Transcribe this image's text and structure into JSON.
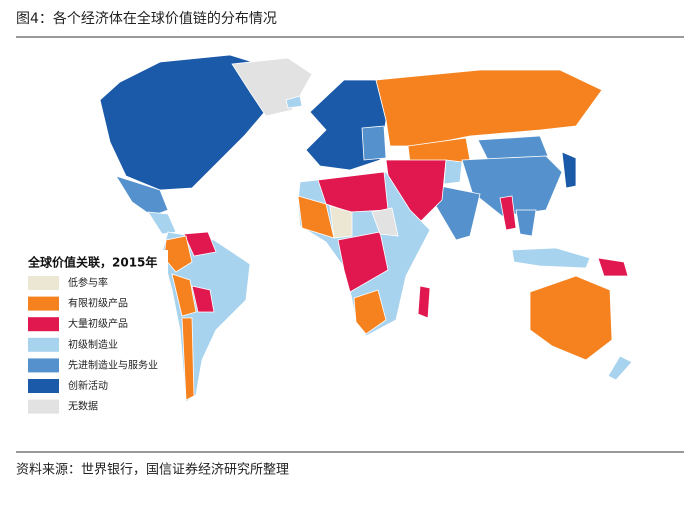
{
  "header": {
    "title": "图4：各个经济体在全球价值链的分布情况"
  },
  "legend": {
    "title": "全球价值关联，2015年",
    "items": [
      {
        "label": "低参与率",
        "color": "#ece7d2"
      },
      {
        "label": "有限初级产品",
        "color": "#f5821f"
      },
      {
        "label": "大量初级产品",
        "color": "#e1184f"
      },
      {
        "label": "初级制造业",
        "color": "#a8d3ef"
      },
      {
        "label": "先进制造业与服务业",
        "color": "#5592cd"
      },
      {
        "label": "创新活动",
        "color": "#1b5aa9"
      },
      {
        "label": "无数据",
        "color": "#e2e2e2"
      }
    ]
  },
  "footer": {
    "source": "资料来源：世界银行，国信证券经济研究所整理"
  }
}
